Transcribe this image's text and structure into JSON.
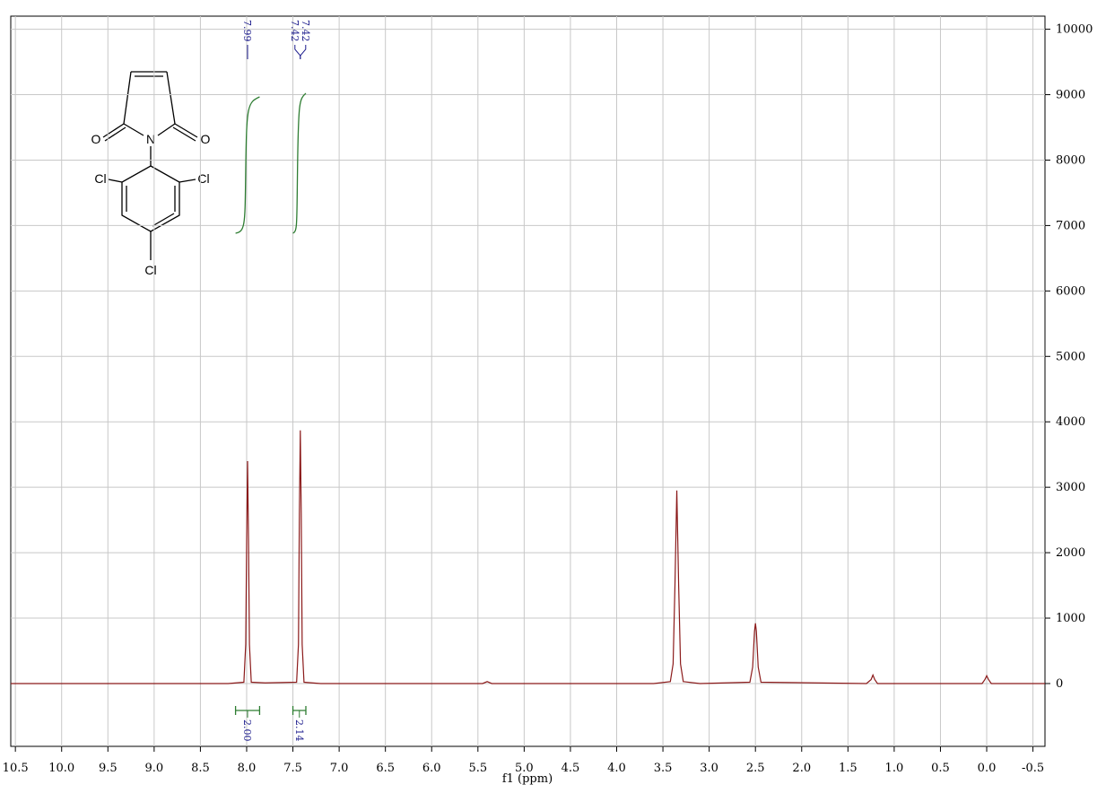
{
  "chart_data": {
    "type": "line",
    "x_label": "f1 (ppm)",
    "xlim": [
      10.55,
      -0.63
    ],
    "xticks": [
      {
        "value": 10.5,
        "label": "10.5"
      },
      {
        "value": 10,
        "label": "10.0"
      },
      9.5,
      {
        "value": 9,
        "label": "9.0"
      },
      8.5,
      {
        "value": 8,
        "label": "8.0"
      },
      7.5,
      {
        "value": 7,
        "label": "7.0"
      },
      6.5,
      {
        "value": 6,
        "label": "6.0"
      },
      5.5,
      {
        "value": 5,
        "label": "5.0"
      },
      4.5,
      {
        "value": 4,
        "label": "4.0"
      },
      3.5,
      {
        "value": 3,
        "label": "3.0"
      },
      2.5,
      {
        "value": 2,
        "label": "2.0"
      },
      1.5,
      {
        "value": 1,
        "label": "1.0"
      },
      0.5,
      {
        "value": 0,
        "label": "0.0"
      },
      -0.5
    ],
    "ylim": [
      -960,
      10200
    ],
    "yticks": [
      0,
      1000,
      2000,
      3000,
      4000,
      5000,
      6000,
      7000,
      8000,
      9000,
      10000
    ],
    "grid": true,
    "color": "#8b1a1a",
    "x": [
      10.55,
      8.2,
      8.03,
      8.01,
      8.0,
      7.99,
      7.98,
      7.97,
      7.95,
      7.8,
      7.46,
      7.44,
      7.43,
      7.42,
      7.41,
      7.4,
      7.38,
      7.2,
      5.45,
      5.4,
      5.35,
      3.6,
      3.42,
      3.39,
      3.37,
      3.35,
      3.33,
      3.31,
      3.28,
      3.1,
      2.56,
      2.53,
      2.51,
      2.5,
      2.49,
      2.47,
      2.44,
      1.3,
      1.25,
      1.23,
      1.21,
      1.18,
      0.05,
      0.02,
      0.0,
      -0.02,
      -0.05,
      -0.63
    ],
    "values": [
      0,
      0,
      20,
      600,
      2200,
      3400,
      2200,
      600,
      20,
      10,
      20,
      600,
      2600,
      3870,
      2600,
      600,
      20,
      0,
      0,
      30,
      0,
      0,
      30,
      300,
      1500,
      2950,
      1500,
      300,
      30,
      0,
      20,
      250,
      800,
      920,
      800,
      250,
      20,
      0,
      60,
      130,
      60,
      0,
      0,
      60,
      120,
      60,
      0,
      0
    ],
    "peak_labels": [
      {
        "value": 7.99,
        "label": "7.99"
      },
      {
        "value": 7.42,
        "label": "7.42"
      },
      {
        "value": 7.42,
        "label": "7.42"
      }
    ],
    "integrals": [
      {
        "range": [
          8.12,
          7.86
        ],
        "value": 2,
        "label": "2.00"
      },
      {
        "range": [
          7.5,
          7.36
        ],
        "value": 2.14,
        "label": "2.14"
      }
    ]
  },
  "molecule": {
    "atoms": [
      "O",
      "N",
      "O",
      "Cl",
      "Cl",
      "Cl"
    ]
  }
}
